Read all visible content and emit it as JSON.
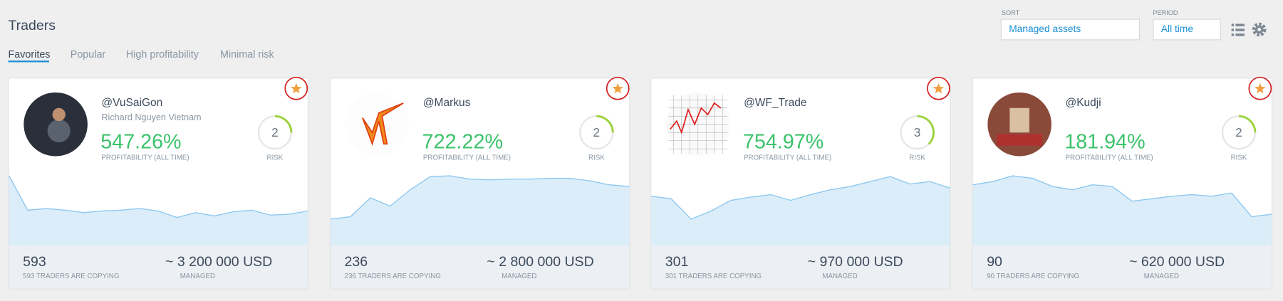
{
  "header": {
    "title": "Traders",
    "tabs": [
      "Favorites",
      "Popular",
      "High profitability",
      "Minimal risk"
    ],
    "sort": {
      "label": "SORT",
      "value": "Managed assets"
    },
    "period": {
      "label": "PERIOD",
      "value": "All time"
    }
  },
  "cards": [
    {
      "handle": "@VuSaiGon",
      "name": "Richard Nguyen Vietnam",
      "profitability": "547.26%",
      "profitability_label": "PROFITABILITY (ALL TIME)",
      "risk": 2,
      "risk_label": "RISK",
      "copiers": 593,
      "copiers_label": "593 TRADERS ARE COPYING",
      "managed": "~ 3 200 000 USD",
      "managed_label": "MANAGED",
      "chart": [
        85,
        43,
        45,
        43,
        40,
        42,
        43,
        45,
        42,
        34,
        40,
        36,
        41,
        43,
        37,
        38,
        42
      ]
    },
    {
      "handle": "@Markus",
      "profitability": "722.22%",
      "profitability_label": "PROFITABILITY (ALL TIME)",
      "risk": 2,
      "risk_label": "RISK",
      "copiers": 236,
      "copiers_label": "236 TRADERS ARE COPYING",
      "managed": "~ 2 800 000 USD",
      "managed_label": "MANAGED",
      "chart": [
        32,
        35,
        58,
        48,
        68,
        84,
        85,
        81,
        80,
        81,
        81,
        82,
        82,
        79,
        74,
        72
      ]
    },
    {
      "handle": "@WF_Trade",
      "profitability": "754.97%",
      "profitability_label": "PROFITABILITY (ALL TIME)",
      "risk": 3,
      "risk_label": "RISK",
      "copiers": 301,
      "copiers_label": "301 TRADERS ARE COPYING",
      "managed": "~ 970 000 USD",
      "managed_label": "MANAGED",
      "chart": [
        60,
        57,
        32,
        42,
        55,
        59,
        62,
        55,
        62,
        68,
        72,
        78,
        84,
        75,
        78,
        70
      ]
    },
    {
      "handle": "@Kudji",
      "profitability": "181.94%",
      "profitability_label": "PROFITABILITY (ALL TIME)",
      "risk": 2,
      "risk_label": "RISK",
      "copiers": 90,
      "copiers_label": "90 TRADERS ARE COPYING",
      "managed": "~ 620 000 USD",
      "managed_label": "MANAGED",
      "chart": [
        74,
        78,
        85,
        82,
        72,
        68,
        74,
        72,
        54,
        57,
        60,
        62,
        60,
        64,
        35,
        38
      ]
    }
  ]
}
